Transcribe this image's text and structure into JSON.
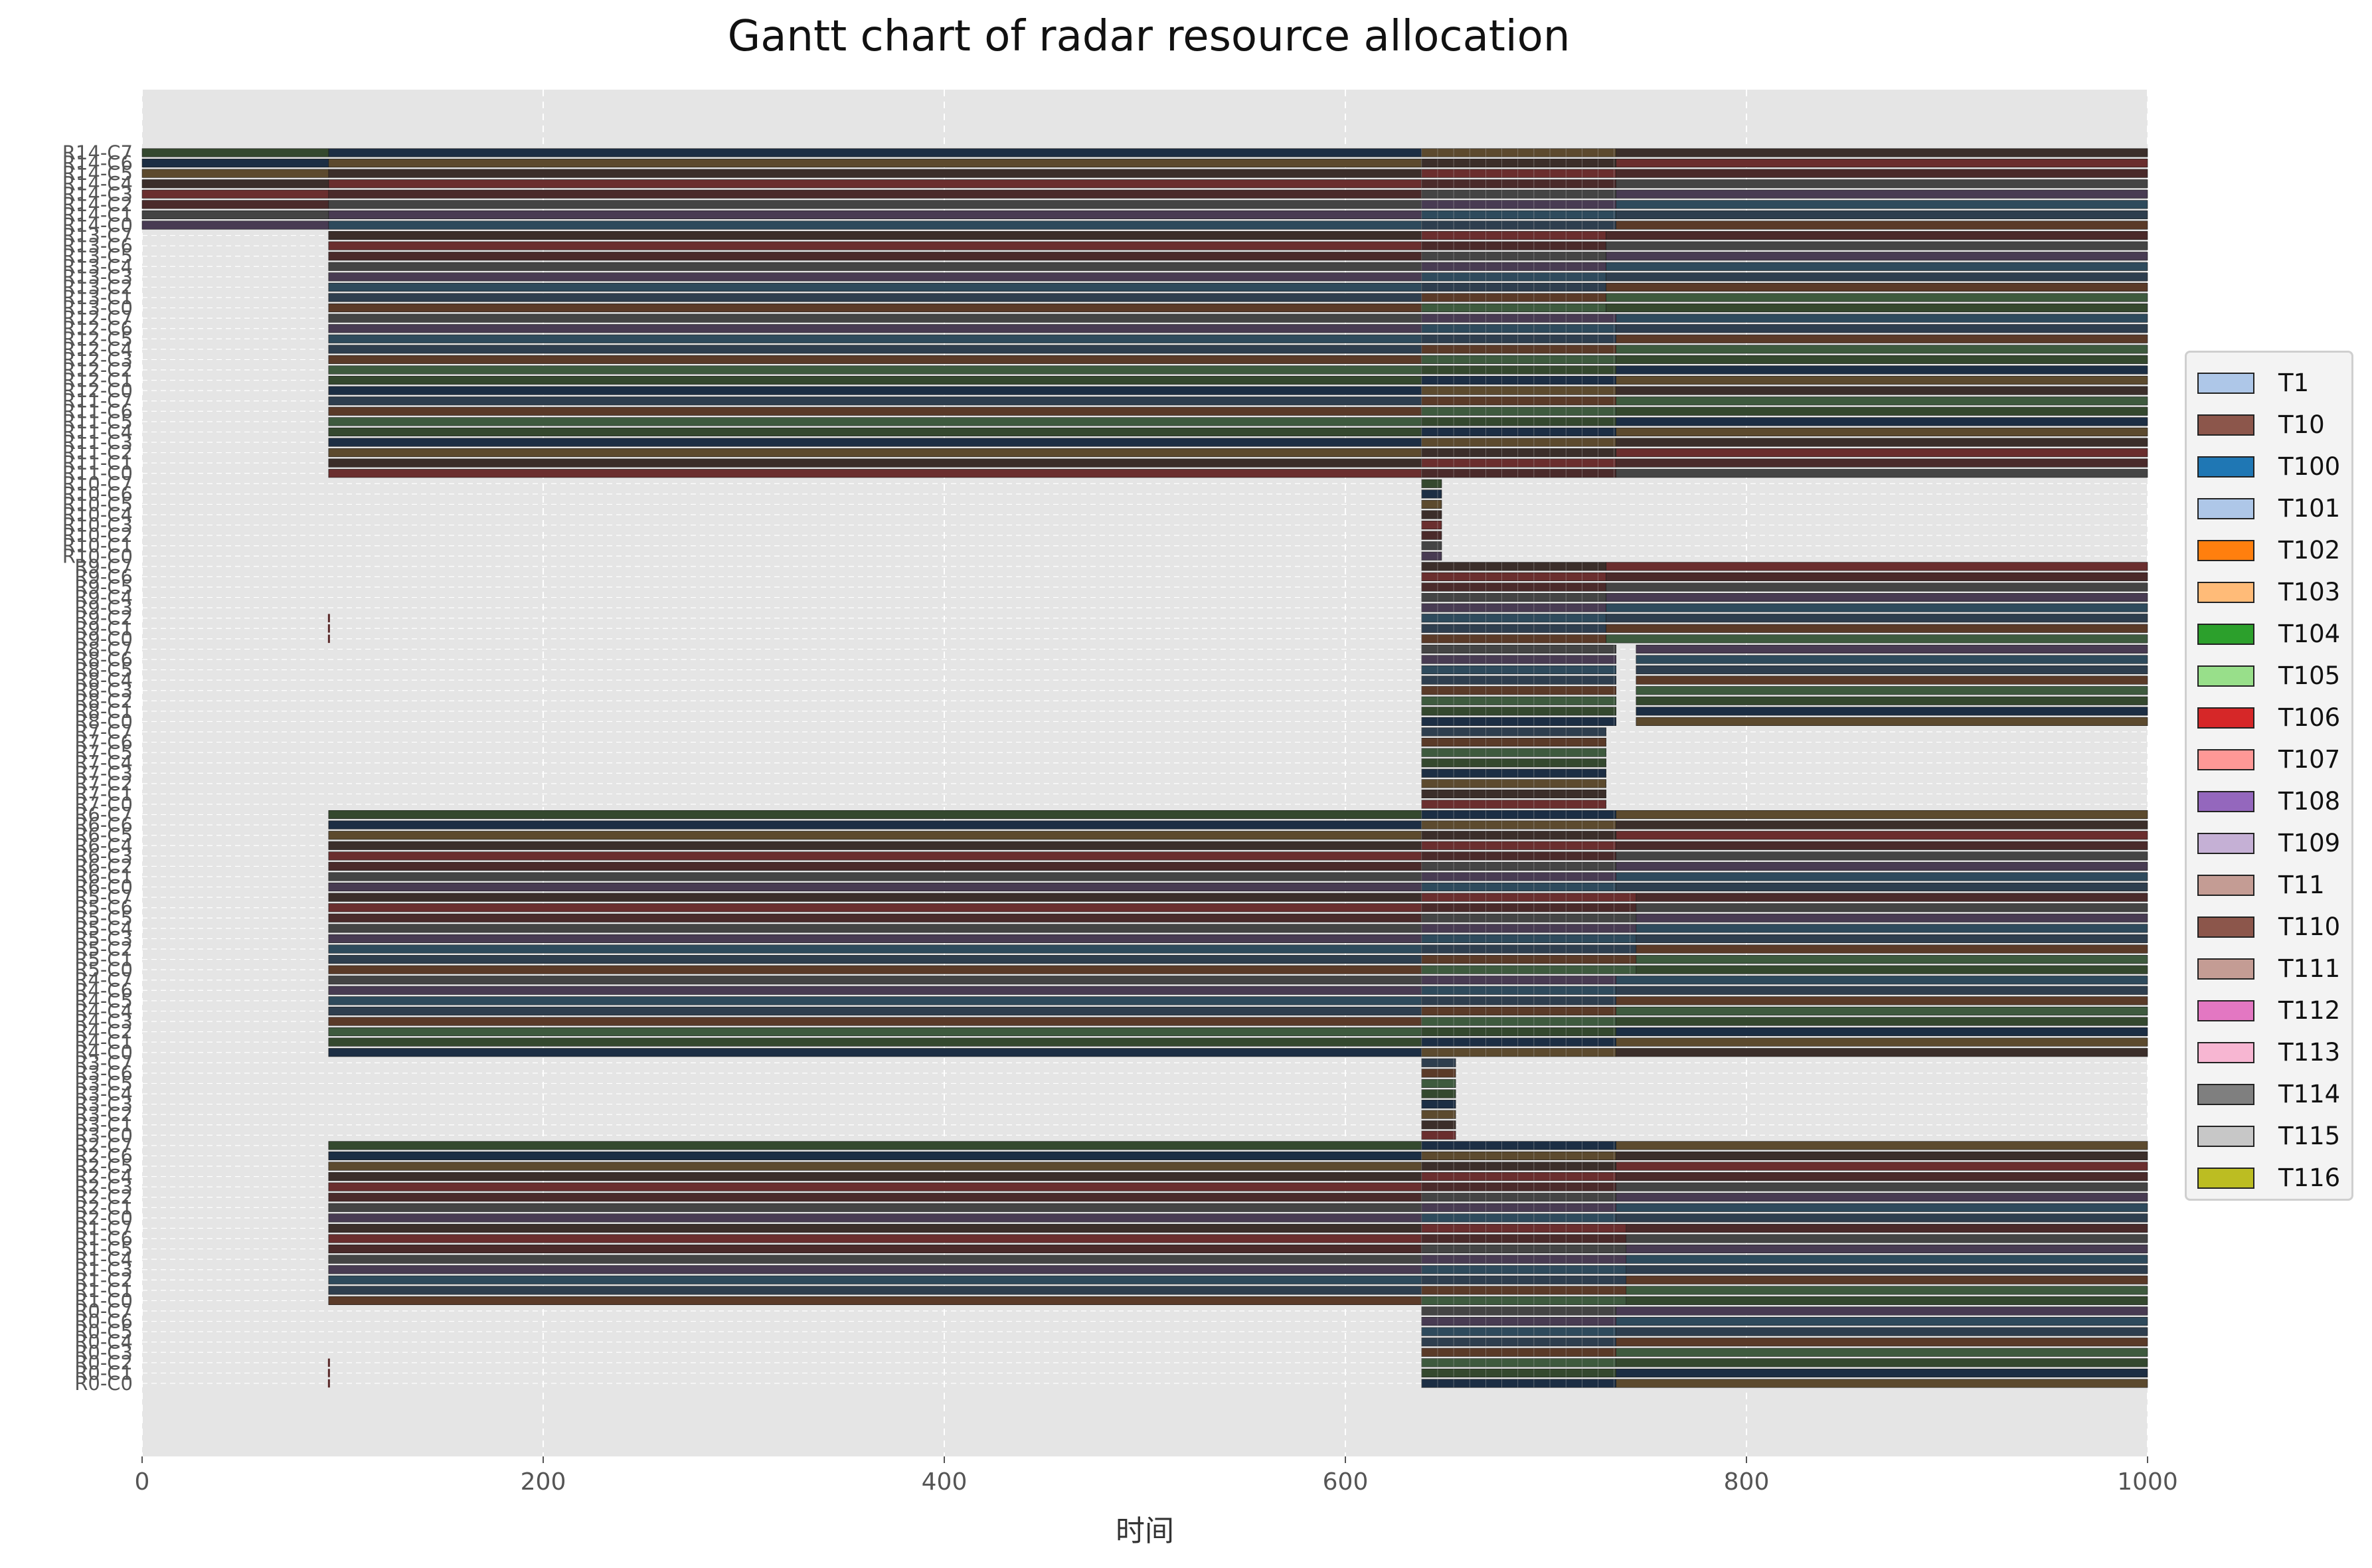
{
  "chart_data": {
    "type": "gantt",
    "title": "Gantt chart of radar resource allocation",
    "xlabel": "时间",
    "ylabel": "",
    "xlim": [
      0,
      1000
    ],
    "xticks": [
      0,
      200,
      400,
      600,
      800,
      1000
    ],
    "grid": true,
    "legend_position": "right",
    "rows": {
      "radar_count": 15,
      "channels_per_radar": 8,
      "label_format": "R{r}-C{c}"
    },
    "series": [
      {
        "name": "T1",
        "color": "#aec7e8"
      },
      {
        "name": "T10",
        "color": "#8c564b"
      },
      {
        "name": "T100",
        "color": "#1f77b4"
      },
      {
        "name": "T101",
        "color": "#aec7e8"
      },
      {
        "name": "T102",
        "color": "#ff7f0e"
      },
      {
        "name": "T103",
        "color": "#ffbb78"
      },
      {
        "name": "T104",
        "color": "#2ca02c"
      },
      {
        "name": "T105",
        "color": "#98df8a"
      },
      {
        "name": "T106",
        "color": "#d62728"
      },
      {
        "name": "T107",
        "color": "#ff9896"
      },
      {
        "name": "T108",
        "color": "#9467bd"
      },
      {
        "name": "T109",
        "color": "#c5b0d5"
      },
      {
        "name": "T11",
        "color": "#c49c94"
      },
      {
        "name": "T110",
        "color": "#8c564b"
      },
      {
        "name": "T111",
        "color": "#c49c94"
      },
      {
        "name": "T112",
        "color": "#e377c2"
      },
      {
        "name": "T113",
        "color": "#f7b6d2"
      },
      {
        "name": "T114",
        "color": "#7f7f7f"
      },
      {
        "name": "T115",
        "color": "#c7c7c7"
      },
      {
        "name": "T116",
        "color": "#bcbd22"
      }
    ],
    "bar_palette": [
      "#1c2e44",
      "#2e4a5c",
      "#3b2e2a",
      "#5a3a28",
      "#4a2a2a",
      "#34482e",
      "#483b52",
      "#5c4a2e",
      "#2e3e4e",
      "#6a2e2e",
      "#3e5a3e",
      "#444444"
    ],
    "occupancy": [
      {
        "radar": 0,
        "segments": [
          [
            638,
            735
          ],
          [
            735,
            1000
          ]
        ],
        "marker": 93
      },
      {
        "radar": 1,
        "segments": [
          [
            93,
            638
          ],
          [
            638,
            740
          ],
          [
            740,
            1000
          ]
        ]
      },
      {
        "radar": 2,
        "segments": [
          [
            93,
            638
          ],
          [
            638,
            735
          ],
          [
            735,
            1000
          ]
        ]
      },
      {
        "radar": 3,
        "segments": [
          [
            638,
            655
          ]
        ]
      },
      {
        "radar": 4,
        "segments": [
          [
            93,
            638
          ],
          [
            638,
            735
          ],
          [
            735,
            1000
          ]
        ]
      },
      {
        "radar": 5,
        "segments": [
          [
            93,
            638
          ],
          [
            638,
            745
          ],
          [
            745,
            1000
          ]
        ]
      },
      {
        "radar": 6,
        "segments": [
          [
            93,
            638
          ],
          [
            638,
            735
          ],
          [
            735,
            1000
          ]
        ]
      },
      {
        "radar": 7,
        "segments": [
          [
            638,
            730
          ]
        ]
      },
      {
        "radar": 8,
        "segments": [
          [
            638,
            735
          ],
          [
            745,
            1000
          ]
        ]
      },
      {
        "radar": 9,
        "segments": [
          [
            638,
            730
          ],
          [
            730,
            1000
          ]
        ],
        "marker": 93
      },
      {
        "radar": 10,
        "segments": [
          [
            638,
            648
          ]
        ]
      },
      {
        "radar": 11,
        "segments": [
          [
            93,
            638
          ],
          [
            638,
            735
          ],
          [
            735,
            1000
          ]
        ]
      },
      {
        "radar": 12,
        "segments": [
          [
            93,
            638
          ],
          [
            638,
            735
          ],
          [
            735,
            1000
          ]
        ]
      },
      {
        "radar": 13,
        "segments": [
          [
            93,
            638
          ],
          [
            638,
            730
          ],
          [
            730,
            1000
          ]
        ]
      },
      {
        "radar": 14,
        "segments": [
          [
            0,
            93
          ],
          [
            93,
            638
          ],
          [
            638,
            735
          ],
          [
            735,
            1000
          ]
        ]
      }
    ]
  }
}
